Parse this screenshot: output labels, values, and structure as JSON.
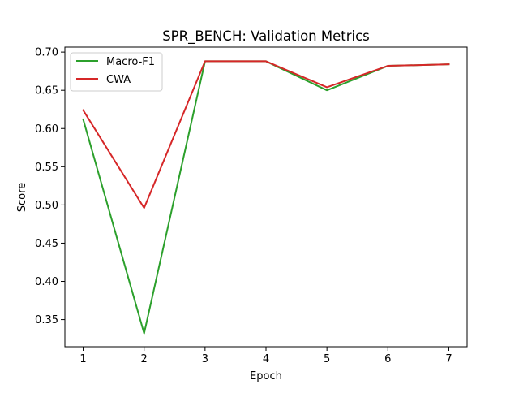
{
  "chart_data": {
    "type": "line",
    "title": "SPR_BENCH: Validation Metrics",
    "xlabel": "Epoch",
    "ylabel": "Score",
    "x": [
      1,
      2,
      3,
      4,
      5,
      6,
      7
    ],
    "xlim": [
      0.7,
      7.3
    ],
    "ylim": [
      0.3145,
      0.7065
    ],
    "xticks": [
      "1",
      "2",
      "3",
      "4",
      "5",
      "6",
      "7"
    ],
    "yticks": [
      "0.35",
      "0.40",
      "0.45",
      "0.50",
      "0.55",
      "0.60",
      "0.65",
      "0.70"
    ],
    "grid": false,
    "legend_position": "upper-left",
    "series": [
      {
        "name": "Macro-F1",
        "color": "#2ca02c",
        "values": [
          0.612,
          0.332,
          0.688,
          0.688,
          0.65,
          0.682,
          0.684
        ]
      },
      {
        "name": "CWA",
        "color": "#d62728",
        "values": [
          0.624,
          0.496,
          0.688,
          0.688,
          0.654,
          0.682,
          0.684
        ]
      }
    ]
  }
}
